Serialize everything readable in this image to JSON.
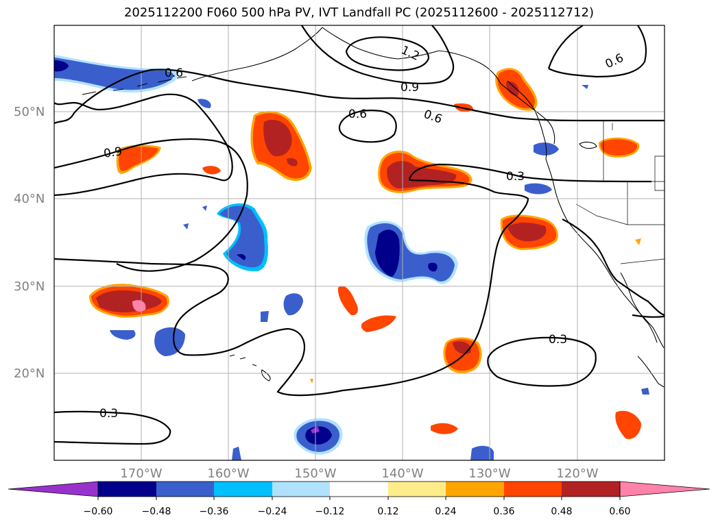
{
  "title": "2025112200 F060 500 hPa PV, IVT Landfall PC (2025112600 - 2025112712)",
  "lat_labels": [
    "50°N",
    "40°N",
    "30°N",
    "20°N"
  ],
  "lon_labels": [
    "170°W",
    "160°W",
    "150°W",
    "140°W",
    "130°W",
    "120°W"
  ],
  "contour_labels": [
    "0.6",
    "1.2",
    "0.9",
    "0.6",
    "0.6",
    "0.6",
    "0.9",
    "0.3",
    "0.3",
    "0.3"
  ],
  "colorbar": {
    "ticks": [
      "−0.60",
      "−0.48",
      "−0.36",
      "−0.24",
      "−0.12",
      "0.12",
      "0.24",
      "0.36",
      "0.48",
      "0.60"
    ],
    "colors": [
      "#9932cc",
      "#00008b",
      "#3a5fcd",
      "#00bfff",
      "#b0e2ff",
      "#ffffff",
      "#ffec8b",
      "#ffa500",
      "#ff4500",
      "#b22222",
      "#ff82ab"
    ]
  },
  "colors": {
    "neg_dark": "#00008b",
    "neg_mid": "#3a5fcd",
    "neg_light": "#00bfff",
    "neg_pale": "#b0e2ff",
    "pos_pale": "#ffec8b",
    "pos_light": "#ffa500",
    "pos_mid": "#ff4500",
    "pos_dark": "#b22222",
    "pos_max": "#ff82ab",
    "grid": "#b0b0b0",
    "axis_label": "#808080"
  }
}
